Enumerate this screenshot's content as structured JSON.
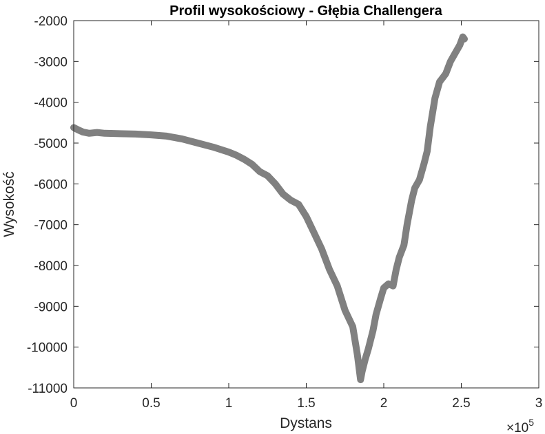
{
  "chart_data": {
    "type": "line",
    "title": "Profil wysokościowy - Głębia Challengera",
    "xlabel": "Dystans",
    "ylabel": "Wysokość",
    "x_exponent": {
      "base": "×10",
      "power": "5"
    },
    "xlim": [
      0,
      3
    ],
    "ylim": [
      -11000,
      -2000
    ],
    "xticks": [
      0,
      0.5,
      1,
      1.5,
      2,
      2.5,
      3
    ],
    "xtick_labels": [
      "0",
      "0.5",
      "1",
      "1.5",
      "2",
      "2.5",
      "3"
    ],
    "yticks": [
      -2000,
      -3000,
      -4000,
      -5000,
      -6000,
      -7000,
      -8000,
      -9000,
      -10000,
      -11000
    ],
    "ytick_labels": [
      "-2000",
      "-3000",
      "-4000",
      "-5000",
      "-6000",
      "-7000",
      "-8000",
      "-9000",
      "-10000",
      "-11000"
    ],
    "grid": false,
    "colors": {
      "line": "#808080",
      "axes": "#262626"
    },
    "series": [
      {
        "x": [
          0,
          0.03,
          0.06,
          0.1,
          0.15,
          0.2,
          0.3,
          0.4,
          0.5,
          0.6,
          0.7,
          0.8,
          0.9,
          1.0,
          1.05,
          1.1,
          1.15,
          1.2,
          1.25,
          1.3,
          1.35,
          1.4,
          1.45,
          1.5,
          1.55,
          1.6,
          1.65,
          1.7,
          1.75,
          1.8,
          1.83,
          1.85,
          1.86,
          1.88,
          1.9,
          1.93,
          1.95,
          1.98,
          2.0,
          2.03,
          2.06,
          2.08,
          2.1,
          2.13,
          2.15,
          2.18,
          2.2,
          2.23,
          2.26,
          2.28,
          2.3,
          2.33,
          2.36,
          2.38,
          2.4,
          2.43,
          2.46,
          2.49,
          2.51,
          2.52
        ],
        "y": [
          -4620,
          -4680,
          -4730,
          -4760,
          -4740,
          -4760,
          -4770,
          -4780,
          -4800,
          -4830,
          -4900,
          -5000,
          -5100,
          -5220,
          -5300,
          -5400,
          -5520,
          -5700,
          -5800,
          -6000,
          -6250,
          -6400,
          -6500,
          -6800,
          -7200,
          -7600,
          -8100,
          -8500,
          -9100,
          -9500,
          -10200,
          -10800,
          -10600,
          -10300,
          -10050,
          -9600,
          -9200,
          -8800,
          -8550,
          -8450,
          -8500,
          -8100,
          -7800,
          -7500,
          -7000,
          -6400,
          -6100,
          -5900,
          -5500,
          -5200,
          -4600,
          -3900,
          -3500,
          -3400,
          -3300,
          -3000,
          -2800,
          -2600,
          -2400,
          -2450
        ]
      }
    ]
  }
}
